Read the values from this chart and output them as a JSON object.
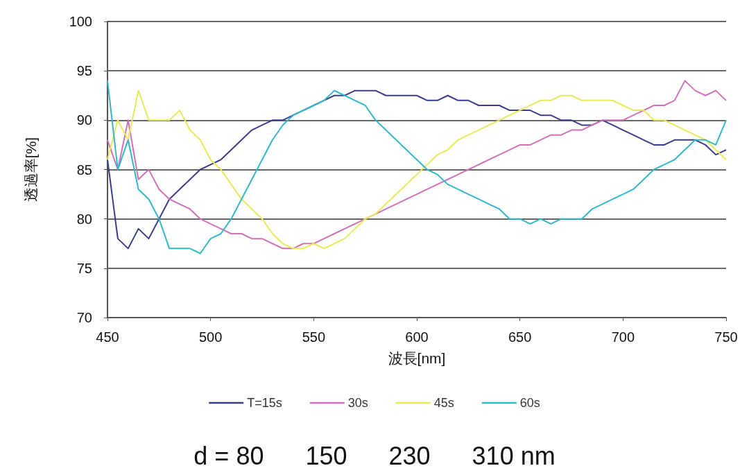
{
  "chart_data": {
    "type": "line",
    "xlabel": "波長[nm]",
    "ylabel": "透過率[%]",
    "x": [
      450,
      455,
      460,
      465,
      470,
      475,
      480,
      485,
      490,
      495,
      500,
      505,
      510,
      515,
      520,
      525,
      530,
      535,
      540,
      545,
      550,
      555,
      560,
      565,
      570,
      575,
      580,
      585,
      590,
      595,
      600,
      605,
      610,
      615,
      620,
      625,
      630,
      635,
      640,
      645,
      650,
      655,
      660,
      665,
      670,
      675,
      680,
      685,
      690,
      695,
      700,
      705,
      710,
      715,
      720,
      725,
      730,
      735,
      740,
      745,
      750
    ],
    "series": [
      {
        "name": "T=15s",
        "color": "#3b3b8c",
        "values": [
          86,
          78,
          77,
          79,
          78,
          80,
          82,
          83,
          84,
          85,
          85.5,
          86,
          87,
          88,
          89,
          89.5,
          90,
          90,
          90.5,
          91,
          91.5,
          92,
          92.5,
          92.5,
          93,
          93,
          93,
          92.5,
          92.5,
          92.5,
          92.5,
          92,
          92,
          92.5,
          92,
          92,
          91.5,
          91.5,
          91.5,
          91,
          91,
          91,
          90.5,
          90.5,
          90,
          90,
          89.5,
          89.5,
          90,
          89.5,
          89,
          88.5,
          88,
          87.5,
          87.5,
          88,
          88,
          88,
          87.5,
          86.5,
          87
        ]
      },
      {
        "name": "30s",
        "color": "#d070b8",
        "values": [
          88,
          85,
          90,
          84,
          85,
          83,
          82,
          81.5,
          81,
          80,
          79.5,
          79,
          78.5,
          78.5,
          78,
          78,
          77.5,
          77,
          77,
          77.5,
          77.5,
          78,
          78.5,
          79,
          79.5,
          80,
          80.5,
          81,
          81.5,
          82,
          82.5,
          83,
          83.5,
          84,
          84.5,
          85,
          85.5,
          86,
          86.5,
          87,
          87.5,
          87.5,
          88,
          88.5,
          88.5,
          89,
          89,
          89.5,
          90,
          90,
          90,
          90.5,
          91,
          91.5,
          91.5,
          92,
          94,
          93,
          92.5,
          93,
          92
        ]
      },
      {
        "name": "45s",
        "color": "#e8e858",
        "values": [
          86,
          90,
          88,
          93,
          90,
          90,
          90,
          91,
          89,
          88,
          86,
          85,
          83.5,
          82,
          81,
          80,
          78.5,
          77.5,
          77,
          77,
          77.5,
          77,
          77.5,
          78,
          79,
          80,
          80.5,
          81.5,
          82.5,
          83.5,
          84.5,
          85.5,
          86.5,
          87,
          88,
          88.5,
          89,
          89.5,
          90,
          90.5,
          91,
          91.5,
          92,
          92,
          92.5,
          92.5,
          92,
          92,
          92,
          92,
          91.5,
          91,
          91,
          90,
          90,
          89.5,
          89,
          88.5,
          88,
          87,
          86
        ]
      },
      {
        "name": "60s",
        "color": "#30b8c8",
        "values": [
          94,
          85,
          88,
          83,
          82,
          80,
          77,
          77,
          77,
          76.5,
          78,
          78.5,
          80,
          82,
          84,
          86,
          88,
          89.5,
          90.5,
          91,
          91.5,
          92,
          93,
          92.5,
          92,
          91.5,
          90,
          89,
          88,
          87,
          86,
          85,
          84.5,
          83.5,
          83,
          82.5,
          82,
          81.5,
          81,
          80,
          80,
          79.5,
          80,
          79.5,
          80,
          80,
          80,
          81,
          81.5,
          82,
          82.5,
          83,
          84,
          85,
          85.5,
          86,
          87,
          88,
          88,
          87.5,
          90
        ]
      }
    ],
    "xlim": [
      450,
      750
    ],
    "xticks": [
      450,
      500,
      550,
      600,
      650,
      700,
      750
    ],
    "ylim": [
      70,
      100
    ],
    "yticks": [
      70,
      75,
      80,
      85,
      90,
      95,
      100
    ],
    "grid": "y",
    "legend": "bottom",
    "marker": "none",
    "line_style": "solid",
    "annotations": [
      "d = 80      150      230      310 nm"
    ]
  }
}
